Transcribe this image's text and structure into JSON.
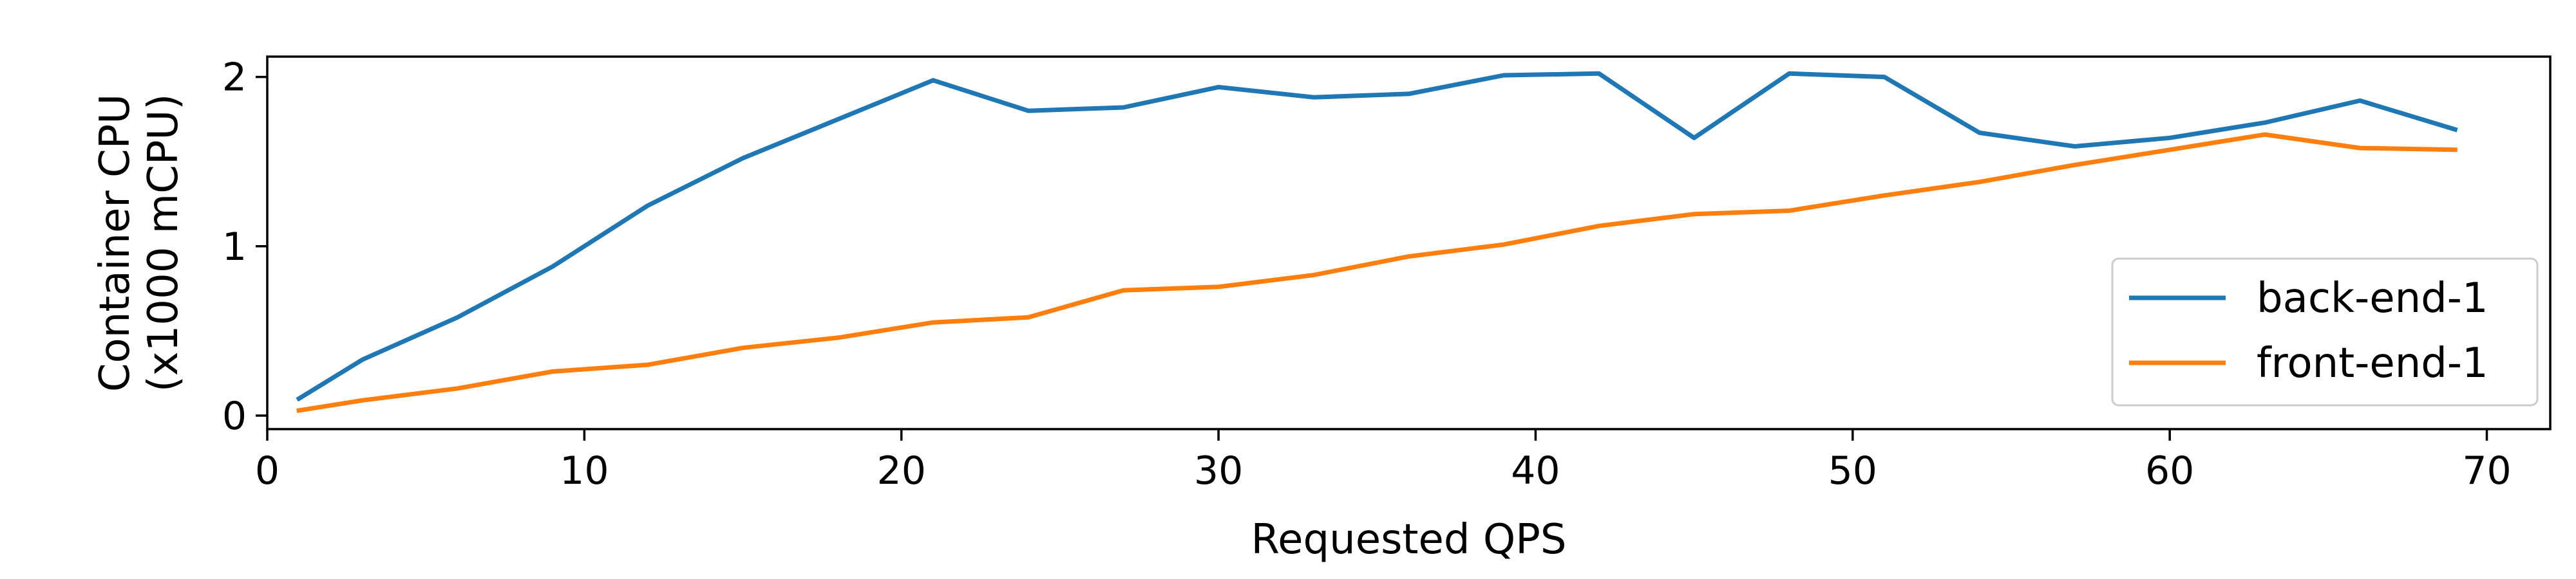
{
  "chart_data": {
    "type": "line",
    "xlabel": "Requested QPS",
    "ylabel_lines": [
      "Container CPU",
      "(x1000 mCPU)"
    ],
    "xlim": [
      0,
      72
    ],
    "ylim": [
      -0.08,
      2.12
    ],
    "xticks": [
      0,
      10,
      20,
      30,
      40,
      50,
      60,
      70
    ],
    "yticks": [
      0,
      1,
      2
    ],
    "grid": false,
    "legend_position": "lower right",
    "series": [
      {
        "name": "back-end-1",
        "color": "#1f77b4",
        "x": [
          1,
          3,
          6,
          9,
          12,
          15,
          18,
          21,
          24,
          27,
          30,
          33,
          36,
          39,
          42,
          45,
          48,
          51,
          54,
          57,
          60,
          63,
          66,
          69
        ],
        "y": [
          0.1,
          0.33,
          0.58,
          0.88,
          1.24,
          1.52,
          1.75,
          1.98,
          1.8,
          1.82,
          1.94,
          1.88,
          1.9,
          2.01,
          2.02,
          1.64,
          2.02,
          2.0,
          1.67,
          1.59,
          1.64,
          1.73,
          1.86,
          1.69
        ]
      },
      {
        "name": "front-end-1",
        "color": "#ff7f0e",
        "x": [
          1,
          3,
          6,
          9,
          12,
          15,
          18,
          21,
          24,
          27,
          30,
          33,
          36,
          39,
          42,
          45,
          48,
          51,
          54,
          57,
          60,
          63,
          66,
          69
        ],
        "y": [
          0.03,
          0.09,
          0.16,
          0.26,
          0.3,
          0.4,
          0.46,
          0.55,
          0.58,
          0.74,
          0.76,
          0.83,
          0.94,
          1.01,
          1.12,
          1.19,
          1.21,
          1.3,
          1.38,
          1.48,
          1.57,
          1.66,
          1.58,
          1.57
        ]
      }
    ]
  }
}
